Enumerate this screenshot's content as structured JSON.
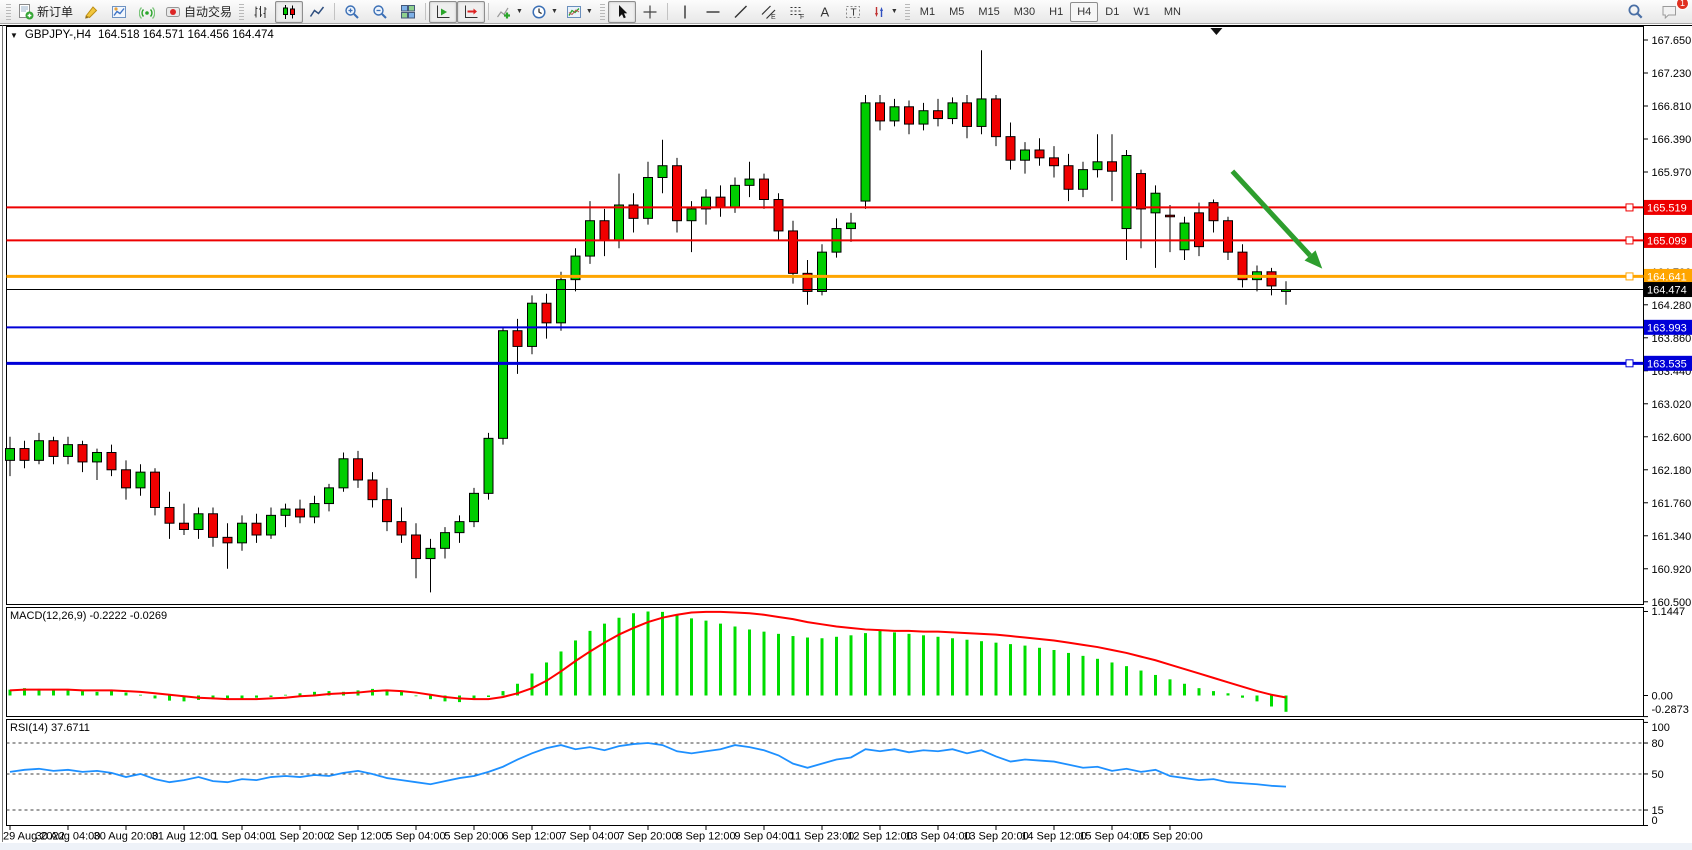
{
  "toolbar": {
    "new_order_label": "新订单",
    "autotrading_label": "自动交易",
    "timeframes": [
      "M1",
      "M5",
      "M15",
      "M30",
      "H1",
      "H4",
      "D1",
      "W1",
      "MN"
    ],
    "active_timeframe": "H4",
    "notification_count": "1",
    "icon_names": [
      "new-order",
      "publish",
      "profile",
      "signals",
      "autotrading",
      "bar-chart",
      "candlestick-chart",
      "line-chart",
      "zoom-in",
      "zoom-out",
      "tile-windows",
      "auto-scroll",
      "chart-shift",
      "indicators",
      "periods",
      "templates",
      "cursor",
      "crosshair",
      "vertical-line",
      "horizontal-line",
      "trendline",
      "equidistant-channel",
      "fibonacci-retracement",
      "text",
      "text-label",
      "arrows",
      "search",
      "chat"
    ]
  },
  "chart": {
    "symbol_period": "GBPJPY-,H4",
    "ohlc_text": "164.518 164.571 164.456 164.474"
  },
  "macd": {
    "label": "MACD(12,26,9) -0.2222 -0.0269",
    "axis_labels": [
      "1.1447",
      "0.00",
      "-0.2873"
    ]
  },
  "rsi": {
    "label": "RSI(14) 37.6711",
    "axis_labels": [
      "100",
      "80",
      "50",
      "15",
      "0"
    ]
  },
  "chart_data": {
    "type": "candlestick",
    "symbol": "GBPJPY-",
    "timeframe": "H4",
    "last_quote_ohlc": [
      164.518,
      164.571,
      164.456,
      164.474
    ],
    "ylim": [
      160.42,
      167.75
    ],
    "price_axis_ticks": [
      "167.650",
      "167.230",
      "166.810",
      "166.390",
      "165.970",
      "164.700",
      "164.280",
      "163.860",
      "163.440",
      "163.020",
      "162.600",
      "162.180",
      "161.760",
      "161.340",
      "160.920",
      "160.500"
    ],
    "current_price": {
      "value": 164.474,
      "label": "164.474",
      "color": "#000000"
    },
    "horizontal_lines": [
      {
        "label": "165.519",
        "value": 165.519,
        "color": "#EE0000",
        "width": 2,
        "handle": true
      },
      {
        "label": "165.099",
        "value": 165.099,
        "color": "#EE0000",
        "width": 2,
        "handle": true
      },
      {
        "label": "164.641",
        "value": 164.641,
        "color": "#FFA500",
        "width": 3,
        "handle": true
      },
      {
        "label": "163.993",
        "value": 163.993,
        "color": "#0000D8",
        "width": 2,
        "handle": false
      },
      {
        "label": "163.535",
        "value": 163.535,
        "color": "#0000D8",
        "width": 3,
        "handle": true
      }
    ],
    "trend_arrow": {
      "color": "#2E9E2E",
      "from": {
        "bar": 84.3,
        "price": 165.98
      },
      "to": {
        "bar": 90.5,
        "price": 164.74
      }
    },
    "shift_marker_bar": 83.2,
    "candles": [
      [
        162.3,
        162.6,
        162.1,
        162.45
      ],
      [
        162.45,
        162.55,
        162.2,
        162.3
      ],
      [
        162.3,
        162.65,
        162.25,
        162.55
      ],
      [
        162.55,
        162.6,
        162.25,
        162.35
      ],
      [
        162.35,
        162.6,
        162.25,
        162.5
      ],
      [
        162.5,
        162.55,
        162.15,
        162.28
      ],
      [
        162.28,
        162.45,
        162.05,
        162.4
      ],
      [
        162.4,
        162.5,
        162.1,
        162.18
      ],
      [
        162.18,
        162.3,
        161.8,
        161.95
      ],
      [
        161.95,
        162.25,
        161.85,
        162.15
      ],
      [
        162.15,
        162.2,
        161.6,
        161.7
      ],
      [
        161.7,
        161.9,
        161.3,
        161.5
      ],
      [
        161.5,
        161.75,
        161.35,
        161.42
      ],
      [
        161.42,
        161.7,
        161.3,
        161.62
      ],
      [
        161.62,
        161.7,
        161.2,
        161.32
      ],
      [
        161.32,
        161.5,
        160.92,
        161.25
      ],
      [
        161.25,
        161.6,
        161.15,
        161.5
      ],
      [
        161.5,
        161.62,
        161.25,
        161.35
      ],
      [
        161.35,
        161.7,
        161.3,
        161.6
      ],
      [
        161.6,
        161.75,
        161.45,
        161.68
      ],
      [
        161.68,
        161.8,
        161.5,
        161.58
      ],
      [
        161.58,
        161.85,
        161.5,
        161.75
      ],
      [
        161.75,
        162.0,
        161.65,
        161.95
      ],
      [
        161.95,
        162.4,
        161.9,
        162.32
      ],
      [
        162.32,
        162.42,
        161.95,
        162.05
      ],
      [
        162.05,
        162.15,
        161.7,
        161.8
      ],
      [
        161.8,
        161.95,
        161.4,
        161.52
      ],
      [
        161.52,
        161.7,
        161.25,
        161.35
      ],
      [
        161.35,
        161.5,
        160.8,
        161.05
      ],
      [
        161.05,
        161.3,
        160.62,
        161.18
      ],
      [
        161.18,
        161.45,
        161.05,
        161.38
      ],
      [
        161.38,
        161.6,
        161.25,
        161.52
      ],
      [
        161.52,
        161.95,
        161.45,
        161.88
      ],
      [
        161.88,
        162.65,
        161.8,
        162.58
      ],
      [
        162.58,
        164.0,
        162.5,
        163.95
      ],
      [
        163.95,
        164.1,
        163.4,
        163.75
      ],
      [
        163.75,
        164.4,
        163.65,
        164.3
      ],
      [
        164.3,
        164.42,
        163.85,
        164.05
      ],
      [
        164.05,
        164.7,
        163.95,
        164.6
      ],
      [
        164.6,
        165.0,
        164.45,
        164.9
      ],
      [
        164.9,
        165.6,
        164.8,
        165.35
      ],
      [
        165.35,
        165.5,
        164.9,
        165.1
      ],
      [
        165.1,
        165.95,
        165.0,
        165.55
      ],
      [
        165.55,
        165.7,
        165.2,
        165.38
      ],
      [
        165.38,
        166.1,
        165.3,
        165.9
      ],
      [
        165.9,
        166.38,
        165.7,
        166.05
      ],
      [
        166.05,
        166.15,
        165.2,
        165.35
      ],
      [
        165.35,
        165.6,
        164.95,
        165.5
      ],
      [
        165.5,
        165.75,
        165.3,
        165.65
      ],
      [
        165.65,
        165.8,
        165.4,
        165.52
      ],
      [
        165.52,
        165.9,
        165.45,
        165.8
      ],
      [
        165.8,
        166.1,
        165.65,
        165.88
      ],
      [
        165.88,
        165.95,
        165.5,
        165.62
      ],
      [
        165.62,
        165.7,
        165.1,
        165.22
      ],
      [
        165.22,
        165.35,
        164.55,
        164.68
      ],
      [
        164.68,
        164.85,
        164.28,
        164.45
      ],
      [
        164.45,
        165.05,
        164.4,
        164.95
      ],
      [
        164.95,
        165.38,
        164.88,
        165.25
      ],
      [
        165.25,
        165.45,
        165.08,
        165.32
      ],
      [
        165.6,
        166.95,
        165.5,
        166.85
      ],
      [
        166.85,
        166.95,
        166.5,
        166.62
      ],
      [
        166.62,
        166.9,
        166.55,
        166.8
      ],
      [
        166.8,
        166.88,
        166.45,
        166.58
      ],
      [
        166.58,
        166.85,
        166.5,
        166.75
      ],
      [
        166.75,
        166.9,
        166.55,
        166.65
      ],
      [
        166.65,
        166.92,
        166.58,
        166.85
      ],
      [
        166.85,
        166.95,
        166.4,
        166.55
      ],
      [
        166.55,
        167.52,
        166.45,
        166.9
      ],
      [
        166.9,
        166.95,
        166.3,
        166.42
      ],
      [
        166.42,
        166.6,
        166.0,
        166.12
      ],
      [
        166.12,
        166.35,
        165.95,
        166.25
      ],
      [
        166.25,
        166.4,
        166.05,
        166.15
      ],
      [
        166.15,
        166.3,
        165.9,
        166.05
      ],
      [
        166.05,
        166.2,
        165.6,
        165.75
      ],
      [
        165.75,
        166.1,
        165.65,
        166.0
      ],
      [
        166.0,
        166.45,
        165.9,
        166.1
      ],
      [
        166.1,
        166.45,
        165.6,
        165.98
      ],
      [
        165.25,
        166.25,
        164.85,
        166.18
      ],
      [
        165.95,
        166.0,
        165.0,
        165.5
      ],
      [
        165.45,
        165.8,
        164.75,
        165.7
      ],
      [
        165.42,
        165.55,
        164.95,
        165.4
      ],
      [
        164.98,
        165.4,
        164.85,
        165.32
      ],
      [
        165.45,
        165.58,
        164.9,
        165.02
      ],
      [
        165.58,
        165.62,
        165.2,
        165.35
      ],
      [
        165.35,
        165.4,
        164.85,
        164.95
      ],
      [
        164.95,
        165.05,
        164.5,
        164.6
      ],
      [
        164.6,
        164.78,
        164.45,
        164.7
      ],
      [
        164.7,
        164.75,
        164.4,
        164.52
      ],
      [
        164.45,
        164.58,
        164.28,
        164.474
      ]
    ],
    "date_labels": [
      "29 Aug 2022",
      "30 Aug 04:00",
      "30 Aug 20:00",
      "31 Aug 12:00",
      "1 Sep 04:00",
      "1 Sep 20:00",
      "2 Sep 12:00",
      "5 Sep 04:00",
      "5 Sep 20:00",
      "6 Sep 12:00",
      "7 Sep 04:00",
      "7 Sep 20:00",
      "8 Sep 12:00",
      "9 Sep 04:00",
      "11 Sep 23:00",
      "12 Sep 12:00",
      "13 Sep 04:00",
      "13 Sep 20:00",
      "14 Sep 12:00",
      "15 Sep 04:00",
      "15 Sep 20:00"
    ],
    "date_label_every_n_bars": 4,
    "indicators": {
      "macd": {
        "name": "MACD",
        "params": "12,26,9",
        "main_value": -0.2222,
        "signal_value": -0.0269,
        "ylim": [
          -0.2873,
          1.1447
        ],
        "histogram_color": "#00DD00",
        "signal_color": "#FF0000",
        "histogram": [
          0.08,
          0.1,
          0.09,
          0.07,
          0.08,
          0.06,
          0.05,
          0.07,
          0.04,
          0.01,
          -0.04,
          -0.07,
          -0.08,
          -0.06,
          -0.05,
          -0.06,
          -0.04,
          -0.03,
          -0.02,
          0.01,
          0.03,
          0.05,
          0.06,
          0.05,
          0.07,
          0.09,
          0.08,
          0.05,
          -0.01,
          -0.05,
          -0.08,
          -0.09,
          -0.06,
          -0.02,
          0.06,
          0.16,
          0.3,
          0.45,
          0.6,
          0.75,
          0.88,
          0.98,
          1.06,
          1.12,
          1.1447,
          1.14,
          1.1,
          1.05,
          1.02,
          0.98,
          0.94,
          0.9,
          0.87,
          0.84,
          0.81,
          0.79,
          0.78,
          0.8,
          0.82,
          0.85,
          0.88,
          0.86,
          0.84,
          0.82,
          0.8,
          0.78,
          0.76,
          0.74,
          0.72,
          0.7,
          0.68,
          0.65,
          0.62,
          0.58,
          0.54,
          0.5,
          0.45,
          0.4,
          0.34,
          0.28,
          0.22,
          0.16,
          0.1,
          0.06,
          0.03,
          -0.03,
          -0.08,
          -0.15,
          -0.2222
        ],
        "signal": [
          0.07,
          0.08,
          0.08,
          0.08,
          0.08,
          0.07,
          0.07,
          0.07,
          0.06,
          0.05,
          0.03,
          0.01,
          -0.01,
          -0.03,
          -0.04,
          -0.05,
          -0.05,
          -0.05,
          -0.04,
          -0.03,
          -0.01,
          0.0,
          0.02,
          0.03,
          0.04,
          0.06,
          0.07,
          0.06,
          0.04,
          0.01,
          -0.02,
          -0.04,
          -0.05,
          -0.05,
          -0.02,
          0.03,
          0.1,
          0.2,
          0.33,
          0.47,
          0.6,
          0.72,
          0.83,
          0.92,
          1.0,
          1.06,
          1.1,
          1.13,
          1.14,
          1.14,
          1.13,
          1.12,
          1.1,
          1.07,
          1.04,
          1.0,
          0.97,
          0.94,
          0.92,
          0.9,
          0.89,
          0.88,
          0.88,
          0.87,
          0.87,
          0.86,
          0.85,
          0.84,
          0.83,
          0.81,
          0.79,
          0.77,
          0.75,
          0.72,
          0.69,
          0.66,
          0.62,
          0.58,
          0.53,
          0.48,
          0.42,
          0.36,
          0.3,
          0.24,
          0.18,
          0.12,
          0.06,
          0.01,
          -0.0269
        ]
      },
      "rsi": {
        "name": "RSI",
        "params": "14",
        "value": 37.6711,
        "levels": [
          80,
          50,
          15
        ],
        "ylim": [
          0,
          100
        ],
        "line_color": "#1E90FF",
        "values": [
          52,
          54,
          55,
          53,
          54,
          52,
          53,
          51,
          47,
          50,
          45,
          42,
          44,
          47,
          43,
          42,
          45,
          44,
          47,
          48,
          47,
          49,
          48,
          51,
          53,
          50,
          46,
          44,
          42,
          40,
          43,
          46,
          48,
          52,
          57,
          64,
          70,
          75,
          78,
          74,
          76,
          73,
          77,
          79,
          80,
          78,
          72,
          70,
          72,
          74,
          78,
          76,
          73,
          68,
          60,
          56,
          60,
          64,
          66,
          74,
          72,
          74,
          71,
          73,
          72,
          74,
          70,
          73,
          67,
          62,
          64,
          63,
          62,
          59,
          56,
          57,
          53,
          55,
          52,
          54,
          48,
          46,
          44,
          45,
          42,
          41,
          40,
          38.5,
          37.67
        ]
      }
    }
  }
}
